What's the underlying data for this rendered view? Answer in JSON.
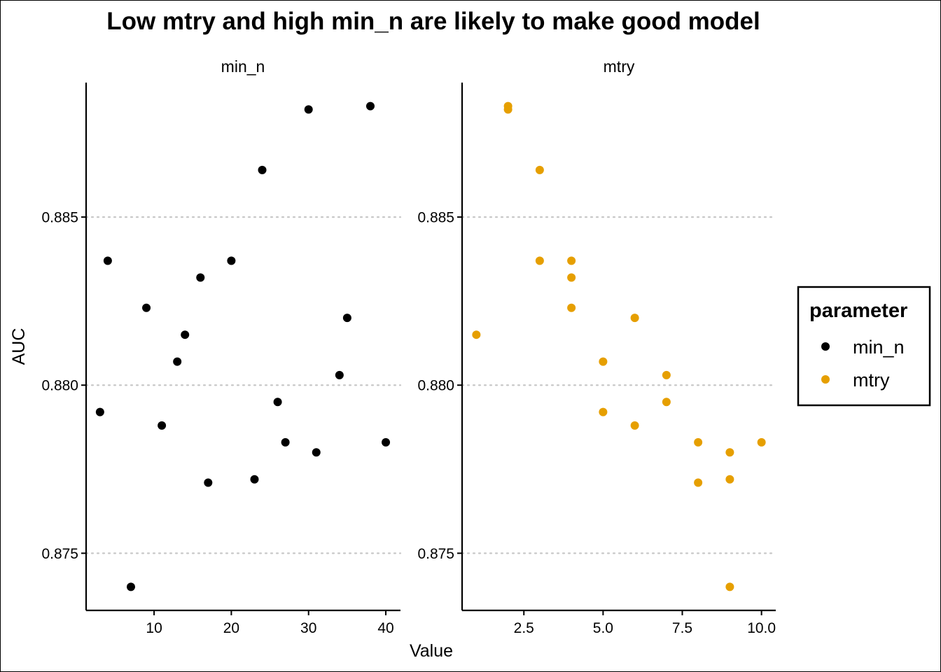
{
  "chart_data": {
    "type": "scatter",
    "title": "Low mtry and high min_n are likely to make good model",
    "xlabel": "Value",
    "ylabel": "AUC",
    "ylim": [
      0.8733,
      0.889
    ],
    "y_ticks": [
      0.875,
      0.88,
      0.885
    ],
    "y_tick_labels": [
      "0.875",
      "0.880",
      "0.885"
    ],
    "grid": "horizontal dotted major",
    "legend": {
      "title": "parameter",
      "position": "right",
      "entries": [
        "min_n",
        "mtry"
      ]
    },
    "panels": [
      {
        "strip_label": "min_n",
        "series_name": "min_n",
        "color": "#000000",
        "xlim": [
          1.2,
          41.9
        ],
        "x_ticks": [
          10,
          20,
          30,
          40
        ],
        "x_tick_labels": [
          "10",
          "20",
          "30",
          "40"
        ],
        "points": [
          {
            "x": 3,
            "y": 0.8792
          },
          {
            "x": 4,
            "y": 0.8837
          },
          {
            "x": 7,
            "y": 0.874
          },
          {
            "x": 9,
            "y": 0.8823
          },
          {
            "x": 11,
            "y": 0.8788
          },
          {
            "x": 13,
            "y": 0.8807
          },
          {
            "x": 14,
            "y": 0.8815
          },
          {
            "x": 16,
            "y": 0.8832
          },
          {
            "x": 17,
            "y": 0.8771
          },
          {
            "x": 20,
            "y": 0.8837
          },
          {
            "x": 23,
            "y": 0.8772
          },
          {
            "x": 24,
            "y": 0.8864
          },
          {
            "x": 26,
            "y": 0.8795
          },
          {
            "x": 27,
            "y": 0.8783
          },
          {
            "x": 30,
            "y": 0.8882
          },
          {
            "x": 31,
            "y": 0.878
          },
          {
            "x": 34,
            "y": 0.8803
          },
          {
            "x": 35,
            "y": 0.882
          },
          {
            "x": 38,
            "y": 0.8883
          },
          {
            "x": 40,
            "y": 0.8783
          }
        ]
      },
      {
        "strip_label": "mtry",
        "series_name": "mtry",
        "color": "#E69F00",
        "xlim": [
          0.55,
          10.45
        ],
        "x_ticks": [
          2.5,
          5.0,
          7.5,
          10.0
        ],
        "x_tick_labels": [
          "2.5",
          "5.0",
          "7.5",
          "10.0"
        ],
        "points": [
          {
            "x": 1,
            "y": 0.8815
          },
          {
            "x": 2,
            "y": 0.8883
          },
          {
            "x": 2,
            "y": 0.8882
          },
          {
            "x": 3,
            "y": 0.8864
          },
          {
            "x": 3,
            "y": 0.8837
          },
          {
            "x": 4,
            "y": 0.8837
          },
          {
            "x": 4,
            "y": 0.8832
          },
          {
            "x": 4,
            "y": 0.8823
          },
          {
            "x": 5,
            "y": 0.8807
          },
          {
            "x": 5,
            "y": 0.8792
          },
          {
            "x": 6,
            "y": 0.882
          },
          {
            "x": 6,
            "y": 0.8788
          },
          {
            "x": 7,
            "y": 0.8803
          },
          {
            "x": 7,
            "y": 0.8795
          },
          {
            "x": 8,
            "y": 0.8783
          },
          {
            "x": 8,
            "y": 0.8771
          },
          {
            "x": 9,
            "y": 0.878
          },
          {
            "x": 9,
            "y": 0.8772
          },
          {
            "x": 9,
            "y": 0.874
          },
          {
            "x": 10,
            "y": 0.8783
          }
        ]
      }
    ]
  }
}
